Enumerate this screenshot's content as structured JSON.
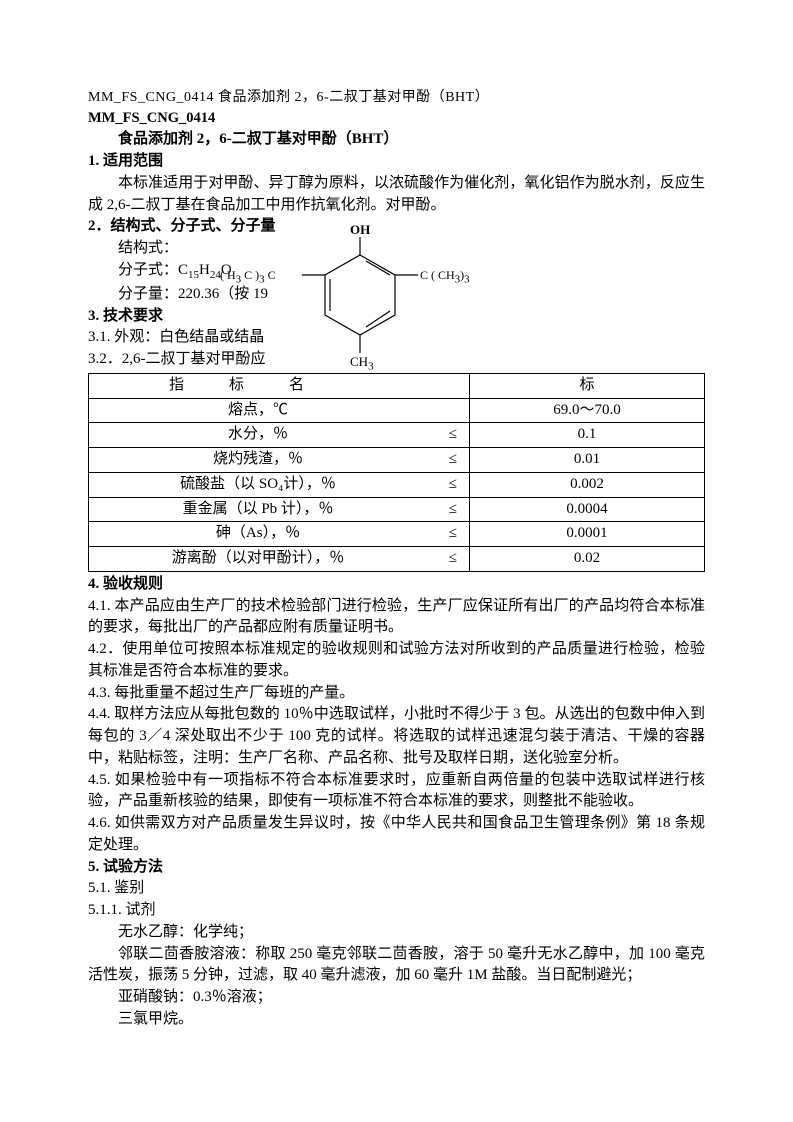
{
  "header": {
    "line": "MM_FS_CNG_0414 食品添加剂 2，6-二叔丁基对甲酚（BHT）",
    "doc_id": "MM_FS_CNG_0414",
    "title": "食品添加剂 2，6-二叔丁基对甲酚（BHT）"
  },
  "section1": {
    "head": "1. 适用范围",
    "p": "本标准适用于对甲酚、异丁醇为原料，以浓硫酸作为催化剂，氧化铝作为脱水剂，反应生成 2,6-二叔丁基在食品加工中用作抗氧化剂。对甲酚。"
  },
  "section2": {
    "head": "2．结构式、分子式、分子量",
    "l1": "结构式：",
    "l2a": "分子式：C",
    "l2_sub1": "15",
    "l2b": "H",
    "l2_sub2": "24",
    "l2c": "O",
    "l3": "分子量：220.36（按 19"
  },
  "molecule": {
    "oh": "OH",
    "left1a": "H",
    "left1b": "3",
    "left1c": " C )",
    "left1d": "3",
    "left1e": "C",
    "right1a": "C  ( CH",
    "right1b": "3",
    "right1c": ")",
    "right1d": "3",
    "bottom": "CH",
    "bottom_sub": "3",
    "stroke_color": "#000000"
  },
  "section3": {
    "head": "3. 技术要求",
    "l1": "3.1. 外观：白色结晶或结晶",
    "l2": "3.2．2,6-二叔丁基对甲酚应"
  },
  "table": {
    "header_name_text": "指　　　标　　　名",
    "header_val_text": "标",
    "le_symbol": "≤",
    "rows": [
      {
        "item": "熔点，℃",
        "le": false,
        "val": "69.0～70.0"
      },
      {
        "item": "水分，％",
        "le": true,
        "val": "0.1"
      },
      {
        "item": "烧灼残渣，％",
        "le": true,
        "val": "0.01"
      },
      {
        "item": "硫酸盐（以 SO₄计），％",
        "le": true,
        "val": "0.002"
      },
      {
        "item": "重金属（以 Pb 计），％",
        "le": true,
        "val": "0.0004"
      },
      {
        "item": "砷（As），％",
        "le": true,
        "val": "0.0001"
      },
      {
        "item": "游离酚（以对甲酚计），％",
        "le": true,
        "val": "0.02"
      }
    ]
  },
  "section4": {
    "head": "4. 验收规则",
    "p1": "4.1. 本产品应由生产厂的技术检验部门进行检验，生产厂应保证所有出厂的产品均符合本标准的要求，每批出厂的产品都应附有质量证明书。",
    "p2": "4.2．使用单位可按照本标准规定的验收规则和试验方法对所收到的产品质量进行检验，检验其标准是否符合本标准的要求。",
    "p3": "4.3. 每批重量不超过生产厂每班的产量。",
    "p4": "4.4. 取样方法应从每批包数的 10％中选取试样，小批时不得少于 3 包。从选出的包数中伸入到每包的 3／4 深处取出不少于 100 克的试样。将选取的试样迅速混匀装于清洁、干燥的容器中，粘贴标签，注明：生产厂名称、产品名称、批号及取样日期，送化验室分析。",
    "p5": "4.5. 如果检验中有一项指标不符合本标准要求时，应重新自两倍量的包装中选取试样进行核验，产品重新核验的结果，即使有一项标准不符合本标准的要求，则整批不能验收。",
    "p6": "4.6. 如供需双方对产品质量发生异议时，按《中华人民共和国食品卫生管理条例》第 18 条规定处理。"
  },
  "section5": {
    "head": "5. 试验方法",
    "l1": "5.1. 鉴别",
    "l2": "5.1.1. 试剂",
    "l3": "无水乙醇：化学纯；",
    "l4": "邻联二茴香胺溶液：称取 250 毫克邻联二茴香胺，溶于 50 毫升无水乙醇中，加 100 毫克活性炭，振荡 5 分钟，过滤，取 40 毫升滤液，加 60 毫升 1M 盐酸。当日配制避光；",
    "l5": "亚硝酸钠：0.3％溶液；",
    "l6": "三氯甲烷。"
  },
  "colors": {
    "text": "#000000",
    "background": "#ffffff",
    "table_border": "#000000"
  }
}
